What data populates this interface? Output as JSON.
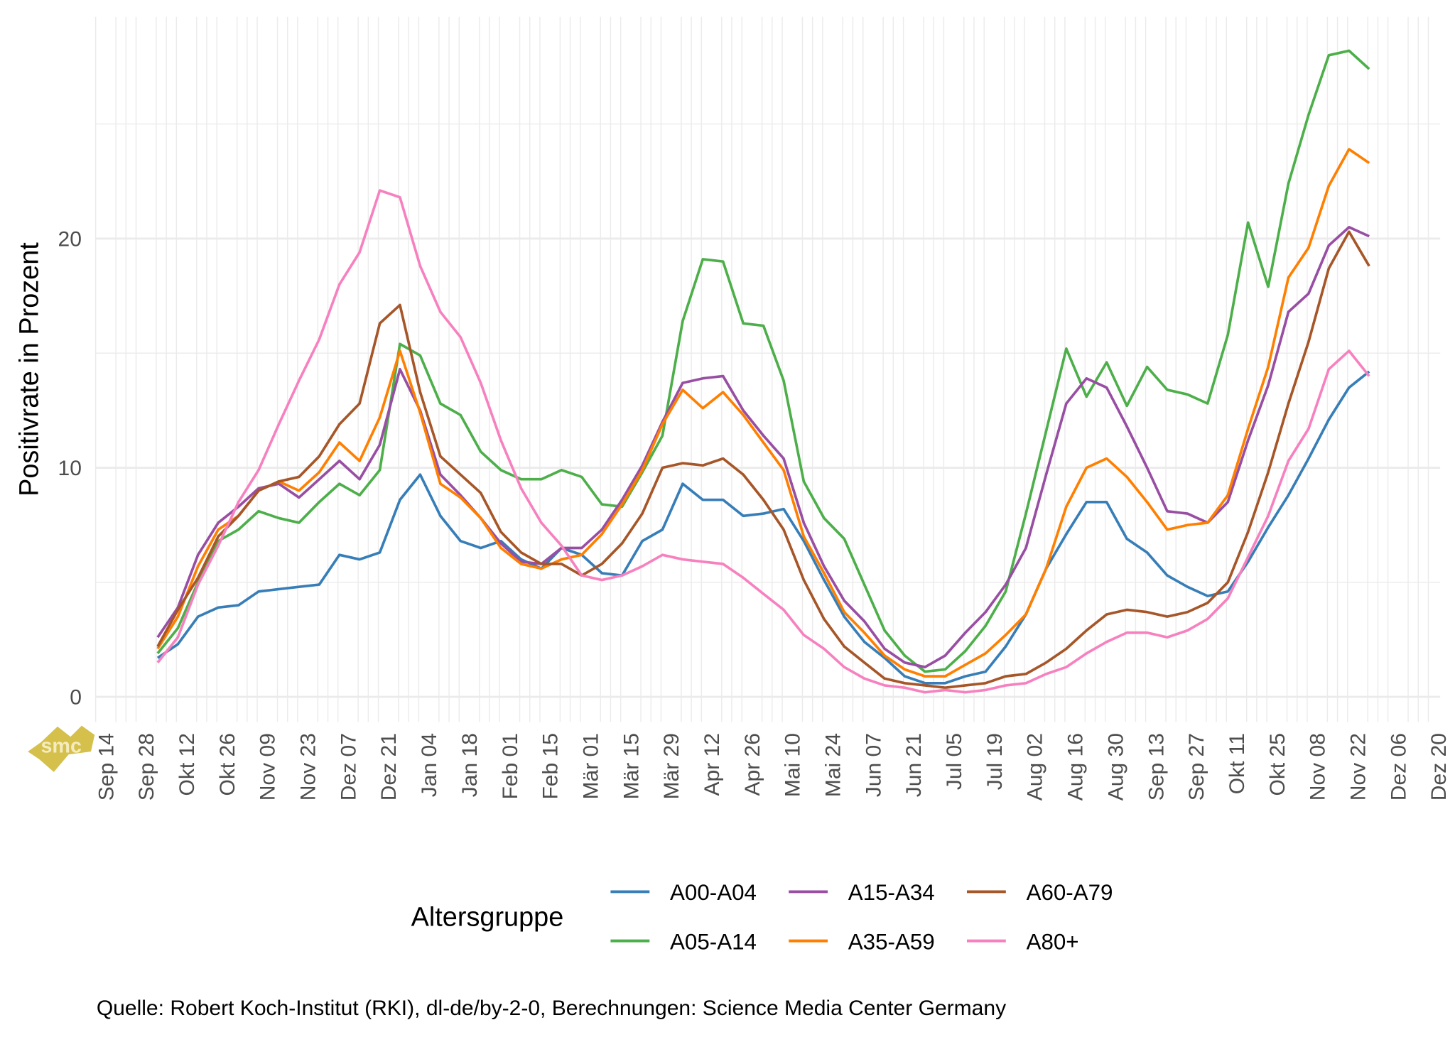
{
  "chart_data": {
    "type": "line",
    "title": "",
    "xlabel": "",
    "ylabel": "Positivrate in Prozent",
    "ylim": [
      -0.6,
      29.5
    ],
    "yticks": [
      "0",
      "10",
      "20"
    ],
    "ytick_values": [
      0,
      10,
      20
    ],
    "xticks": [
      "Sep 14",
      "Sep 28",
      "Okt 12",
      "Okt 26",
      "Nov 09",
      "Nov 23",
      "Dez 07",
      "Dez 21",
      "Jan 04",
      "Jan 18",
      "Feb 01",
      "Feb 15",
      "Mär 01",
      "Mär 15",
      "Mär 29",
      "Apr 12",
      "Apr 26",
      "Mai 10",
      "Mai 24",
      "Jun 07",
      "Jun 21",
      "Jul 05",
      "Jul 19",
      "Aug 02",
      "Aug 16",
      "Aug 30",
      "Sep 13",
      "Sep 27",
      "Okt 11",
      "Okt 25",
      "Nov 08",
      "Nov 22",
      "Dez 06",
      "Dez 20"
    ],
    "x_unit": "weeks since Sep 14 (weekly points)",
    "x_start_week": 2.57,
    "grid": true,
    "legend": {
      "title": "Altersgruppe",
      "placement": "bottom"
    },
    "series": [
      {
        "name": "A00-A04",
        "color": "#377EB8",
        "values": [
          1.7,
          2.3,
          3.5,
          3.9,
          4.0,
          4.6,
          4.7,
          4.8,
          4.9,
          6.2,
          6.0,
          6.3,
          8.6,
          9.7,
          7.9,
          6.8,
          6.5,
          6.8,
          6.0,
          5.6,
          6.5,
          6.2,
          5.4,
          5.3,
          6.8,
          7.3,
          9.3,
          8.6,
          8.6,
          7.9,
          8.0,
          8.2,
          6.8,
          5.1,
          3.5,
          2.4,
          1.7,
          0.9,
          0.6,
          0.6,
          0.9,
          1.1,
          2.2,
          3.6,
          5.6,
          7.1,
          8.5,
          8.5,
          6.9,
          6.3,
          5.3,
          4.8,
          4.4,
          4.6,
          5.9,
          7.4,
          8.8,
          10.4,
          12.1,
          13.5,
          14.2
        ]
      },
      {
        "name": "A05-A14",
        "color": "#4DAF4A",
        "values": [
          1.9,
          3.0,
          5.0,
          6.8,
          7.3,
          8.1,
          7.8,
          7.6,
          8.5,
          9.3,
          8.8,
          9.9,
          15.4,
          14.9,
          12.8,
          12.3,
          10.7,
          9.9,
          9.5,
          9.5,
          9.9,
          9.6,
          8.4,
          8.3,
          9.8,
          11.4,
          16.4,
          19.1,
          19.0,
          16.3,
          16.2,
          13.8,
          9.4,
          7.8,
          6.9,
          4.9,
          2.9,
          1.8,
          1.1,
          1.2,
          2.0,
          3.1,
          4.6,
          8.0,
          11.6,
          15.2,
          13.1,
          14.6,
          12.7,
          14.4,
          13.4,
          13.2,
          12.8,
          15.8,
          20.7,
          17.9,
          22.4,
          25.4,
          28.0,
          28.2,
          27.4
        ]
      },
      {
        "name": "A15-A34",
        "color": "#984EA3",
        "values": [
          2.6,
          3.9,
          6.2,
          7.6,
          8.3,
          9.1,
          9.3,
          8.7,
          9.5,
          10.3,
          9.5,
          11.0,
          14.3,
          12.5,
          9.7,
          8.8,
          7.8,
          6.7,
          5.9,
          5.8,
          6.5,
          6.5,
          7.3,
          8.6,
          10.1,
          12.0,
          13.7,
          13.9,
          14.0,
          12.5,
          11.4,
          10.4,
          7.6,
          5.7,
          4.2,
          3.3,
          2.1,
          1.5,
          1.3,
          1.8,
          2.8,
          3.7,
          4.9,
          6.5,
          9.7,
          12.8,
          13.9,
          13.5,
          11.8,
          10.0,
          8.1,
          8.0,
          7.6,
          8.5,
          11.2,
          13.6,
          16.8,
          17.6,
          19.7,
          20.5,
          20.1
        ]
      },
      {
        "name": "A35-A59",
        "color": "#FF7F00",
        "values": [
          2.1,
          3.5,
          5.7,
          7.3,
          7.9,
          9.0,
          9.4,
          9.0,
          9.8,
          11.1,
          10.3,
          12.2,
          15.1,
          12.4,
          9.3,
          8.7,
          7.8,
          6.5,
          5.8,
          5.6,
          6.0,
          6.2,
          7.1,
          8.4,
          9.9,
          11.9,
          13.4,
          12.6,
          13.3,
          12.3,
          11.1,
          9.9,
          7.0,
          5.4,
          3.7,
          2.8,
          1.8,
          1.2,
          0.9,
          0.9,
          1.4,
          1.9,
          2.7,
          3.6,
          5.6,
          8.3,
          10.0,
          10.4,
          9.6,
          8.5,
          7.3,
          7.5,
          7.6,
          8.8,
          11.7,
          14.4,
          18.3,
          19.6,
          22.3,
          23.9,
          23.3
        ]
      },
      {
        "name": "A60-A79",
        "color": "#A65628",
        "values": [
          2.2,
          3.8,
          5.2,
          7.0,
          7.9,
          9.0,
          9.4,
          9.6,
          10.5,
          11.9,
          12.8,
          16.3,
          17.1,
          13.3,
          10.5,
          9.7,
          8.9,
          7.2,
          6.3,
          5.8,
          5.8,
          5.3,
          5.8,
          6.7,
          8.0,
          10.0,
          10.2,
          10.1,
          10.4,
          9.7,
          8.6,
          7.3,
          5.1,
          3.4,
          2.2,
          1.5,
          0.8,
          0.6,
          0.5,
          0.4,
          0.5,
          0.6,
          0.9,
          1.0,
          1.5,
          2.1,
          2.9,
          3.6,
          3.8,
          3.7,
          3.5,
          3.7,
          4.1,
          5.0,
          7.2,
          9.8,
          12.8,
          15.5,
          18.7,
          20.3,
          18.8
        ]
      },
      {
        "name": "A80+",
        "color": "#F781BF",
        "values": [
          1.5,
          2.6,
          4.9,
          6.6,
          8.5,
          9.9,
          11.9,
          13.8,
          15.6,
          18.0,
          19.4,
          22.1,
          21.8,
          18.8,
          16.8,
          15.7,
          13.7,
          11.2,
          9.1,
          7.6,
          6.6,
          5.3,
          5.1,
          5.3,
          5.7,
          6.2,
          6.0,
          5.9,
          5.8,
          5.2,
          4.5,
          3.8,
          2.7,
          2.1,
          1.3,
          0.8,
          0.5,
          0.4,
          0.2,
          0.3,
          0.2,
          0.3,
          0.5,
          0.6,
          1.0,
          1.3,
          1.9,
          2.4,
          2.8,
          2.8,
          2.6,
          2.9,
          3.4,
          4.3,
          6.1,
          7.9,
          10.3,
          11.7,
          14.3,
          15.1,
          14.0
        ]
      }
    ],
    "caption": "Quelle: Robert Koch-Institut (RKI), dl-de/by-2-0, Berechnungen: Science Media Center Germany"
  },
  "logo": {
    "text": "smc"
  }
}
